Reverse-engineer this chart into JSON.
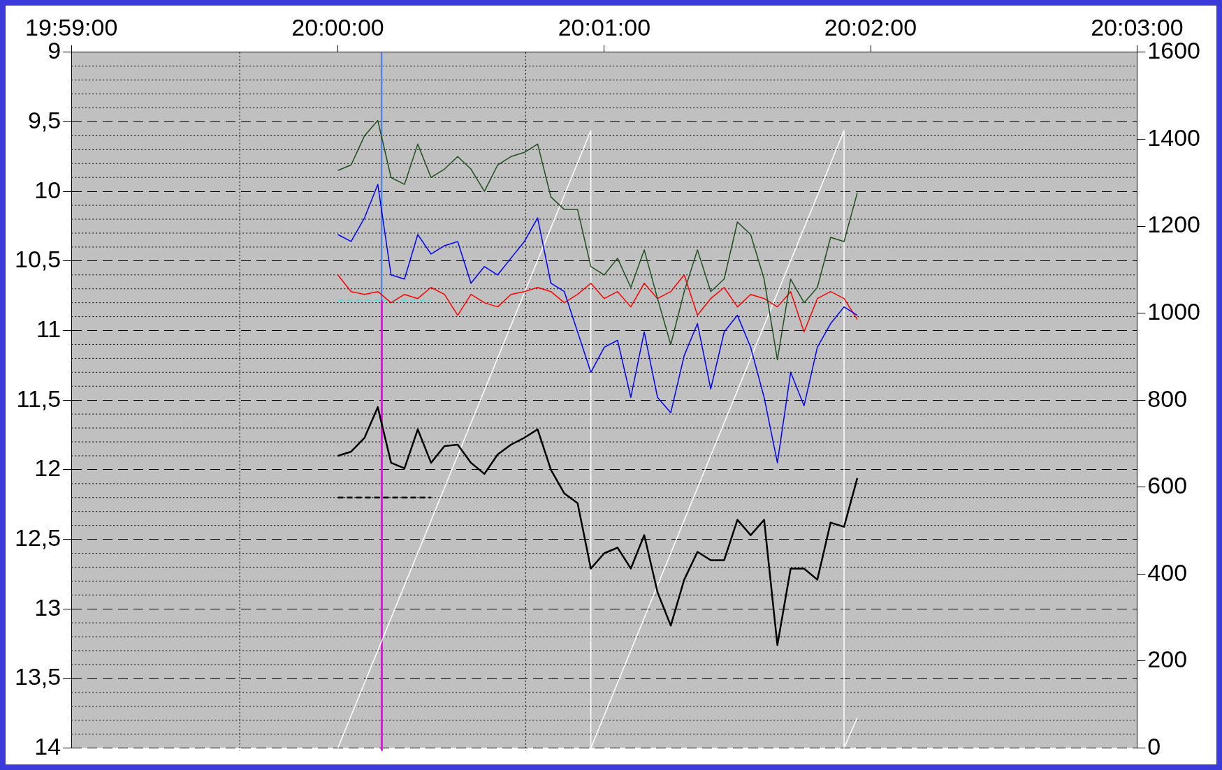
{
  "chart_data": {
    "type": "line",
    "x": [
      20.0,
      20.00083,
      20.00167,
      20.0025,
      20.00333,
      20.00417,
      20.005,
      20.00583,
      20.00667,
      20.0075,
      20.00833,
      20.00917,
      20.01,
      20.01083,
      20.01167,
      20.0125,
      20.01333,
      20.01417,
      20.015,
      20.01583,
      20.01667,
      20.0175,
      20.01833,
      20.01917,
      20.02,
      20.02083,
      20.02167,
      20.0225,
      20.02333,
      20.02417,
      20.025,
      20.02583,
      20.02667,
      20.0275,
      20.02833,
      20.02917,
      20.03,
      20.03083,
      20.03167,
      20.0325
    ],
    "series": [
      {
        "color": "#1f4f1f",
        "values": [
          9.85,
          9.81,
          9.6,
          9.49,
          9.9,
          9.95,
          9.66,
          9.9,
          9.84,
          9.75,
          9.84,
          10.0,
          9.81,
          9.75,
          9.72,
          9.66,
          10.04,
          10.13,
          10.13,
          10.54,
          10.6,
          10.48,
          10.69,
          10.42,
          10.77,
          11.1,
          10.72,
          10.42,
          10.72,
          10.63,
          10.22,
          10.31,
          10.63,
          11.21,
          10.63,
          10.8,
          10.69,
          10.33,
          10.36,
          10.01
        ]
      },
      {
        "color": "#0000ff",
        "values": [
          10.31,
          10.36,
          10.19,
          9.95,
          10.6,
          10.63,
          10.31,
          10.45,
          10.39,
          10.36,
          10.66,
          10.54,
          10.6,
          10.48,
          10.36,
          10.19,
          10.66,
          10.72,
          11.01,
          11.3,
          11.12,
          11.07,
          11.48,
          11.01,
          11.48,
          11.59,
          11.18,
          10.95,
          11.42,
          11.01,
          10.89,
          11.12,
          11.48,
          11.95,
          11.3,
          11.54,
          11.12,
          10.95,
          10.83,
          10.89
        ]
      },
      {
        "color": "#ff0000",
        "values": [
          10.6,
          10.72,
          10.74,
          10.72,
          10.8,
          10.74,
          10.77,
          10.69,
          10.74,
          10.89,
          10.74,
          10.8,
          10.83,
          10.74,
          10.72,
          10.69,
          10.72,
          10.8,
          10.74,
          10.66,
          10.77,
          10.72,
          10.83,
          10.66,
          10.77,
          10.72,
          10.6,
          10.89,
          10.77,
          10.69,
          10.83,
          10.74,
          10.77,
          10.83,
          10.72,
          11.01,
          10.77,
          10.72,
          10.77,
          10.92
        ]
      },
      {
        "color": "#000000",
        "values": [
          11.9,
          11.87,
          11.77,
          11.55,
          11.95,
          11.99,
          11.71,
          11.95,
          11.83,
          11.82,
          11.95,
          12.03,
          11.89,
          11.82,
          11.77,
          11.71,
          12.0,
          12.17,
          12.24,
          12.71,
          12.6,
          12.56,
          12.71,
          12.47,
          12.88,
          13.12,
          12.79,
          12.59,
          12.65,
          12.65,
          12.36,
          12.47,
          12.36,
          13.26,
          12.71,
          12.71,
          12.79,
          12.38,
          12.41,
          12.06
        ]
      },
      {
        "color": "#000000",
        "line_style": "dashed",
        "x": [
          20.0,
          20.00583
        ],
        "values": [
          12.2,
          12.2
        ]
      },
      {
        "color": "#00ffff",
        "line_style": "dashed",
        "x": [
          20.0,
          20.00583
        ],
        "values": [
          10.78,
          10.78
        ]
      },
      {
        "color": "#00ffff",
        "x": [
          20.00278,
          20.00278
        ],
        "values": [
          9,
          10.78
        ]
      },
      {
        "color": "#ffffff",
        "axis": "y2",
        "x": [
          20.0,
          20.01583,
          20.01583,
          20.03167,
          20.03167,
          20.0325
        ],
        "values": [
          0,
          1420,
          0,
          1420,
          0,
          70
        ]
      }
    ],
    "xlim": [
      19.98333,
      20.05
    ],
    "xticks": [
      {
        "value": 19.98333,
        "label": "19:59:00"
      },
      {
        "value": 20.0,
        "label": "20:00:00"
      },
      {
        "value": 20.01667,
        "label": "20:01:00"
      },
      {
        "value": 20.03333,
        "label": "20:02:00"
      },
      {
        "value": 20.05,
        "label": "20:03:00"
      }
    ],
    "ylim": [
      14,
      9
    ],
    "yticks": [
      9,
      {
        "value": 9.5,
        "label": "9,5"
      },
      10,
      {
        "value": 10.5,
        "label": "10,5"
      },
      11,
      {
        "value": 11.5,
        "label": "11,5"
      },
      12,
      {
        "value": 12.5,
        "label": "12,5"
      },
      13,
      {
        "value": 13.5,
        "label": "13,5"
      },
      14
    ],
    "y2lim": [
      0,
      1600
    ],
    "y2ticks": [
      0,
      200,
      400,
      600,
      800,
      1000,
      1200,
      1400,
      1600
    ],
    "ref_lines": [
      {
        "axis": "x",
        "value": 19.99386,
        "color": "#000000",
        "line_style": "dotted"
      },
      {
        "axis": "x",
        "value": 20.01175,
        "color": "#000000",
        "line_style": "dotted"
      },
      {
        "axis": "x",
        "value": 20.00275,
        "color": "#ff00ff"
      }
    ],
    "grid": "y",
    "legend": false,
    "marker": "none",
    "line_style": "solid"
  }
}
